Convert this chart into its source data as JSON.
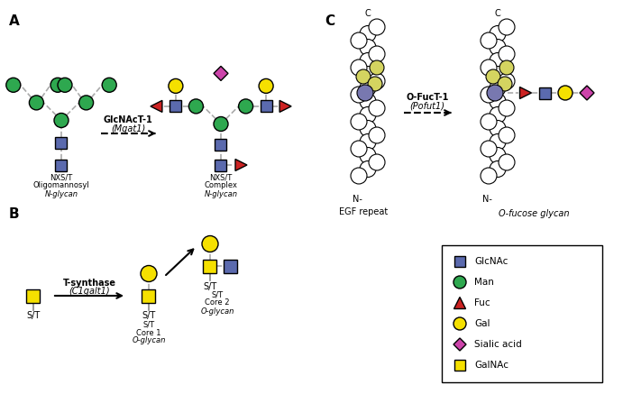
{
  "colors": {
    "GlcNAc": "#5b6aae",
    "Man": "#2ea84f",
    "Fuc": "#cc2222",
    "Gal": "#f5e000",
    "Sialic_acid": "#cc44aa",
    "GalNAc": "#f5e000",
    "line": "#aaaaaa"
  },
  "legend_items": [
    {
      "label": "GlcNAc",
      "shape": "square",
      "color": "#5b6aae"
    },
    {
      "label": "Man",
      "shape": "circle",
      "color": "#2ea84f"
    },
    {
      "label": "Fuc",
      "shape": "triangle",
      "color": "#cc2222"
    },
    {
      "label": "Gal",
      "shape": "circle",
      "color": "#f5e000"
    },
    {
      "label": "Sialic acid",
      "shape": "diamond",
      "color": "#cc44aa"
    },
    {
      "label": "GalNAc",
      "shape": "square",
      "color": "#f5e000"
    }
  ],
  "panel_labels": [
    "A",
    "B",
    "C"
  ],
  "enzyme_A_line1": "GlcNAcT-1",
  "enzyme_A_line2": "(Mgat1)",
  "enzyme_B_line1": "T-synthase",
  "enzyme_B_line2": "(C1galt1)",
  "enzyme_C_line1": "O-FucT-1",
  "enzyme_C_line2": "(Pofut1)",
  "label_oligo_line1": "NXS/T",
  "label_oligo_line2": "Oligomannosyl",
  "label_oligo_line3": "N-glycan",
  "label_complex_line1": "NXS/T",
  "label_complex_line2": "Complex",
  "label_complex_line3": "N-glycan",
  "label_ST": "S/T",
  "label_core1_line1": "S/T",
  "label_core1_line2": "Core 1",
  "label_core1_line3": "O-glycan",
  "label_core2_line1": "S/T",
  "label_core2_line2": "Core 2",
  "label_core2_line3": "O-glycan",
  "label_EGF": "EGF repeat",
  "label_Ofucose": "O-fucose glycan",
  "label_C": "C",
  "label_N": "N-"
}
